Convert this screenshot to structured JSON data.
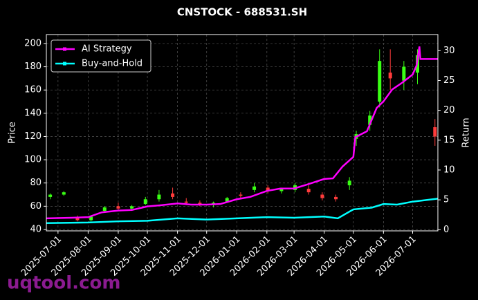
{
  "chart_data": {
    "type": "candlestick",
    "title": "CNSTOCK - 688531.SH",
    "ylabel": "Price",
    "y2label": "Return",
    "watermark": "uqtool.com",
    "xlim": [
      "2025-06-19",
      "2026-07-27"
    ],
    "xticks": [
      "2025-07-01",
      "2025-08-01",
      "2025-09-01",
      "2025-10-01",
      "2025-11-01",
      "2025-12-01",
      "2026-01-01",
      "2026-02-01",
      "2026-03-01",
      "2026-04-01",
      "2026-05-01",
      "2026-06-01",
      "2026-07-01"
    ],
    "ylim": [
      38.8,
      207.7
    ],
    "yticks": [
      40,
      60,
      80,
      100,
      120,
      140,
      160,
      180,
      200
    ],
    "y2lim": [
      -0.2,
      32.7
    ],
    "y2ticks": [
      0,
      5,
      10,
      15,
      20,
      25,
      30
    ],
    "grid": true,
    "legend": "upper left",
    "up_color": "#39ff14",
    "down_color": "#ff3b3b",
    "candles": {
      "x": [
        "2025-06-23",
        "2025-07-07",
        "2025-07-21",
        "2025-08-04",
        "2025-08-18",
        "2025-09-01",
        "2025-09-15",
        "2025-09-29",
        "2025-10-13",
        "2025-10-27",
        "2025-11-10",
        "2025-11-24",
        "2025-12-08",
        "2025-12-22",
        "2026-01-05",
        "2026-01-19",
        "2026-02-02",
        "2026-02-16",
        "2026-03-02",
        "2026-03-16",
        "2026-03-30",
        "2026-04-13",
        "2026-04-27",
        "2026-05-04",
        "2026-05-18",
        "2026-05-28",
        "2026-06-08",
        "2026-06-22",
        "2026-07-06",
        "2026-07-24"
      ],
      "open": [
        68,
        70,
        50,
        48,
        56,
        60,
        58,
        62,
        66,
        71,
        64,
        63,
        61,
        64,
        70,
        74,
        76,
        73,
        74,
        75,
        70,
        68,
        78,
        118,
        130,
        150,
        175,
        168,
        175,
        128
      ],
      "high": [
        71,
        73,
        52,
        52,
        60,
        63,
        61,
        68,
        74,
        76,
        67,
        65,
        64,
        68,
        72,
        80,
        78,
        76,
        80,
        78,
        72,
        70,
        85,
        125,
        142,
        195,
        195,
        185,
        195,
        135
      ],
      "low": [
        66,
        69,
        47,
        47,
        55,
        57,
        56,
        61,
        64,
        66,
        61,
        60,
        59,
        63,
        67,
        72,
        71,
        71,
        72,
        70,
        65,
        64,
        74,
        112,
        125,
        145,
        160,
        160,
        165,
        112
      ],
      "close": [
        70,
        72,
        48,
        51,
        59,
        58,
        60,
        66,
        70,
        68,
        63,
        62,
        63,
        67,
        69,
        77,
        73,
        75,
        78,
        72,
        67,
        66,
        82,
        122,
        138,
        185,
        170,
        180,
        190,
        120
      ]
    },
    "series": [
      {
        "name": "AI Strategy",
        "color": "#ff00ff",
        "axis": "y2",
        "x": [
          "2025-06-19",
          "2025-07-15",
          "2025-08-01",
          "2025-08-15",
          "2025-09-01",
          "2025-09-15",
          "2025-10-01",
          "2025-10-15",
          "2025-11-01",
          "2025-11-15",
          "2025-12-01",
          "2025-12-15",
          "2026-01-01",
          "2026-01-15",
          "2026-02-01",
          "2026-02-15",
          "2026-03-01",
          "2026-03-15",
          "2026-04-01",
          "2026-04-10",
          "2026-04-20",
          "2026-05-01",
          "2026-05-03",
          "2026-05-15",
          "2026-05-25",
          "2026-06-01",
          "2026-06-10",
          "2026-06-20",
          "2026-07-01",
          "2026-07-05",
          "2026-07-08",
          "2026-07-09",
          "2026-07-27"
        ],
        "values": [
          1.9,
          2.0,
          2.1,
          2.9,
          3.2,
          3.3,
          3.9,
          4.1,
          4.4,
          4.2,
          4.2,
          4.3,
          5.1,
          5.5,
          6.5,
          6.9,
          6.9,
          7.6,
          8.5,
          8.6,
          10.6,
          12.2,
          15.5,
          16.5,
          20.4,
          21.5,
          23.5,
          24.6,
          26.0,
          27.5,
          30.7,
          28.6,
          28.6
        ]
      },
      {
        "name": "Buy-and-Hold",
        "color": "#00ffff",
        "axis": "y2",
        "x": [
          "2025-06-19",
          "2025-08-01",
          "2025-09-01",
          "2025-10-01",
          "2025-11-01",
          "2025-12-01",
          "2026-01-01",
          "2026-02-01",
          "2026-03-01",
          "2026-04-01",
          "2026-04-15",
          "2026-05-01",
          "2026-05-20",
          "2026-06-01",
          "2026-06-15",
          "2026-07-01",
          "2026-07-27"
        ],
        "values": [
          1.1,
          1.2,
          1.4,
          1.5,
          1.9,
          1.7,
          1.9,
          2.1,
          2.0,
          2.2,
          1.9,
          3.4,
          3.7,
          4.3,
          4.2,
          4.7,
          5.2
        ]
      }
    ]
  }
}
